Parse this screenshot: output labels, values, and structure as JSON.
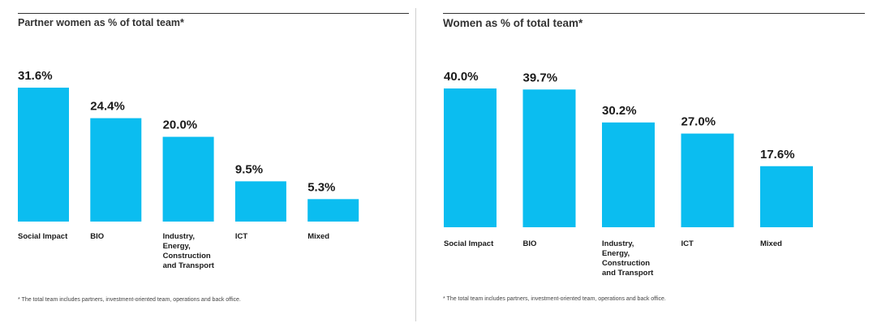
{
  "left_panel": {
    "title": "Partner women as % of total team*",
    "footnote": "* The total team includes partners, investment-oriented team, operations and back office."
  },
  "right_panel": {
    "title": "Women as % of total team*",
    "footnote": "* The total team includes partners, investment-oriented team, operations and back office."
  },
  "chart_data": [
    {
      "type": "bar",
      "title": "Partner women as % of total team*",
      "categories": [
        [
          "Social Impact"
        ],
        [
          "BIO"
        ],
        [
          "Industry,",
          "Energy,",
          "Construction",
          "and Transport"
        ],
        [
          "ICT"
        ],
        [
          "Mixed"
        ]
      ],
      "values": [
        31.6,
        24.4,
        20.0,
        9.5,
        5.3
      ],
      "value_labels": [
        "31.6%",
        "24.4%",
        "20.0%",
        "9.5%",
        "5.3%"
      ],
      "xlabel": "",
      "ylabel": "",
      "ylim": [
        0,
        31.6
      ],
      "grid": false,
      "bar_color": "#0bbdf0"
    },
    {
      "type": "bar",
      "title": "Women as % of total team*",
      "categories": [
        [
          "Social Impact"
        ],
        [
          "BIO"
        ],
        [
          "Industry,",
          "Energy,",
          "Construction",
          "and Transport"
        ],
        [
          "ICT"
        ],
        [
          "Mixed"
        ]
      ],
      "values": [
        40.0,
        39.7,
        30.2,
        27.0,
        17.6
      ],
      "value_labels": [
        "40.0%",
        "39.7%",
        "30.2%",
        "27.0%",
        "17.6%"
      ],
      "xlabel": "",
      "ylabel": "",
      "ylim": [
        0,
        40.0
      ],
      "grid": false,
      "bar_color": "#0bbdf0"
    }
  ]
}
